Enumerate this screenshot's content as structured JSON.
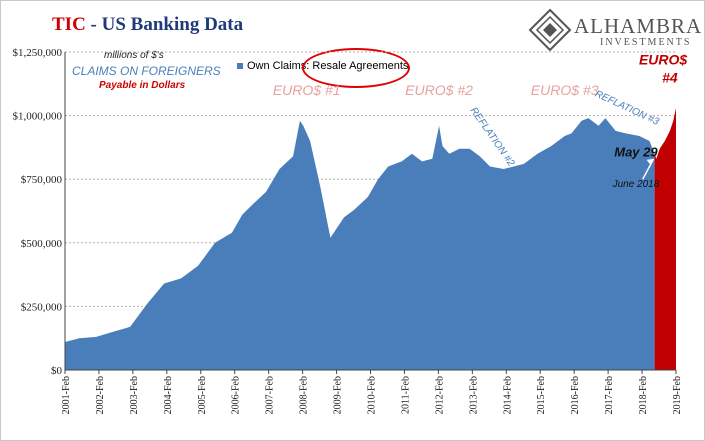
{
  "header": {
    "title_red": "TIC",
    "title_rest": " - US Banking Data"
  },
  "logo": {
    "brand": "ALHAMBRA",
    "sub": "INVESTMENTS"
  },
  "notes": {
    "units": "millions of $'s",
    "claims": "CLAIMS  ON FOREIGNERS",
    "payable": "Payable  in Dollars"
  },
  "colors": {
    "series": "#4a7ebb",
    "highlight": "#c00000",
    "annotation": "#e8a0a0",
    "title_red": "#cc0000"
  },
  "chart_data": {
    "type": "area",
    "legend": "Own Claims: Resale Agreements",
    "ylim": [
      0,
      1250000
    ],
    "yticks": [
      0,
      250000,
      500000,
      750000,
      1000000,
      1250000
    ],
    "ytick_labels": [
      "$0",
      "$250,000",
      "$500,000",
      "$750,000",
      "$1,000,000",
      "$1,250,000"
    ],
    "x_start": 2001.08,
    "x_end": 2019.08,
    "xtick_labels": [
      "2001-Feb",
      "2002-Feb",
      "2003-Feb",
      "2004-Feb",
      "2005-Feb",
      "2006-Feb",
      "2007-Feb",
      "2008-Feb",
      "2009-Feb",
      "2010-Feb",
      "2011-Feb",
      "2012-Feb",
      "2013-Feb",
      "2014-Feb",
      "2015-Feb",
      "2016-Feb",
      "2017-Feb",
      "2018-Feb",
      "2019-Feb"
    ],
    "series": [
      {
        "name": "Own Claims: Resale Agreements",
        "x": [
          2001.08,
          2001.5,
          2002.0,
          2002.5,
          2003.0,
          2003.5,
          2004.0,
          2004.5,
          2005.0,
          2005.5,
          2006.0,
          2006.3,
          2006.6,
          2007.0,
          2007.4,
          2007.8,
          2008.0,
          2008.1,
          2008.3,
          2008.6,
          2008.9,
          2009.0,
          2009.3,
          2009.6,
          2010.0,
          2010.3,
          2010.6,
          2011.0,
          2011.3,
          2011.6,
          2011.9,
          2012.1,
          2012.2,
          2012.4,
          2012.7,
          2013.0,
          2013.3,
          2013.6,
          2014.0,
          2014.3,
          2014.6,
          2015.0,
          2015.4,
          2015.8,
          2016.0,
          2016.3,
          2016.5,
          2016.8,
          2017.0,
          2017.3,
          2017.6,
          2018.0,
          2018.3,
          2018.45
        ],
        "y": [
          110000,
          125000,
          130000,
          150000,
          170000,
          260000,
          340000,
          360000,
          410000,
          500000,
          540000,
          610000,
          650000,
          700000,
          790000,
          840000,
          980000,
          960000,
          900000,
          720000,
          520000,
          540000,
          600000,
          630000,
          680000,
          750000,
          800000,
          820000,
          850000,
          820000,
          830000,
          960000,
          880000,
          850000,
          870000,
          870000,
          840000,
          800000,
          790000,
          800000,
          810000,
          850000,
          880000,
          920000,
          930000,
          980000,
          990000,
          960000,
          990000,
          940000,
          930000,
          920000,
          900000,
          850000
        ]
      },
      {
        "name": "Euro$ #4",
        "x": [
          2018.45,
          2018.5,
          2018.6,
          2018.75,
          2018.9,
          2019.0,
          2019.08
        ],
        "y": [
          850000,
          830000,
          870000,
          900000,
          940000,
          980000,
          1030000
        ]
      }
    ],
    "annotations": [
      {
        "text": "EURO$ #1",
        "x": 2008.2,
        "y": 1080000
      },
      {
        "text": "EURO$ #2",
        "x": 2012.1,
        "y": 1080000
      },
      {
        "text": "EURO$ #3",
        "x": 2015.8,
        "y": 1080000
      },
      {
        "text": "REFLATION #2",
        "x": 2013.6,
        "y": 910000
      },
      {
        "text": "REFLATION #3",
        "x": 2017.6,
        "y": 1020000
      },
      {
        "text": "EURO$",
        "x": 2018.7,
        "y": 1200000
      },
      {
        "text": "#4",
        "x": 2018.9,
        "y": 1130000
      },
      {
        "text": "May 29",
        "x": 2017.9,
        "y": 840000
      },
      {
        "text": "June 2018",
        "x": 2017.9,
        "y": 720000
      }
    ]
  }
}
